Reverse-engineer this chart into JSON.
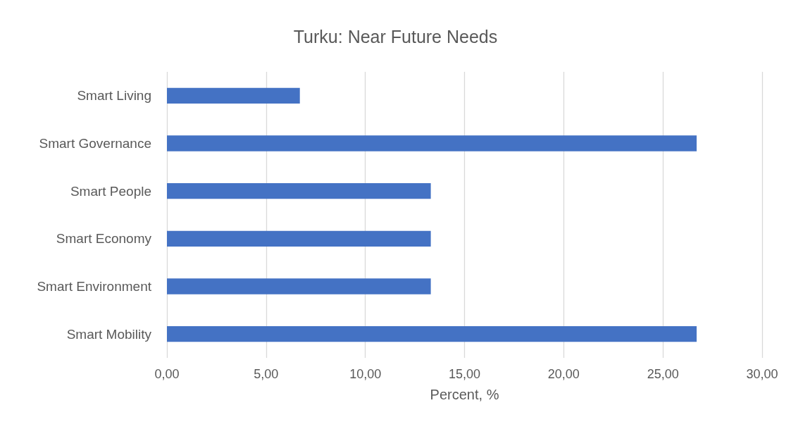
{
  "chart_data": {
    "type": "bar",
    "title": "Turku: Near Future Needs",
    "xlabel": "Percent, %",
    "orientation": "horizontal",
    "categories": [
      "Smart Living",
      "Smart Governance",
      "Smart People",
      "Smart Economy",
      "Smart Environment",
      "Smart Mobility"
    ],
    "values": [
      6.7,
      26.7,
      13.3,
      13.3,
      13.3,
      26.7
    ],
    "color": "#4472c4",
    "xlim": [
      0,
      30
    ],
    "xticks": [
      {
        "value": 0,
        "label": "0,00"
      },
      {
        "value": 5,
        "label": "5,00"
      },
      {
        "value": 10,
        "label": "10,00"
      },
      {
        "value": 15,
        "label": "15,00"
      },
      {
        "value": 20,
        "label": "20,00"
      },
      {
        "value": 25,
        "label": "25,00"
      },
      {
        "value": 30,
        "label": "30,00"
      }
    ],
    "grid": "x"
  }
}
